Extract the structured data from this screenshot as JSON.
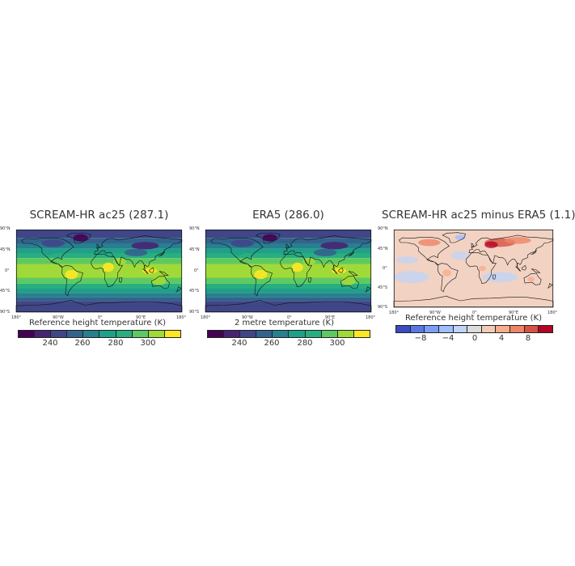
{
  "panels": [
    {
      "title": "SCREAM-HR ac25 (287.1)",
      "colorbar_title": "Reference height temperature (K)",
      "colorbar_labels": [
        "240",
        "260",
        "280",
        "300"
      ],
      "colors": [
        "#440154",
        "#482374",
        "#404688",
        "#33638d",
        "#27808e",
        "#1fa088",
        "#29af7f",
        "#5ec962",
        "#a0da39",
        "#fde725"
      ],
      "kind": "abs"
    },
    {
      "title": "ERA5 (286.0)",
      "colorbar_title": "2 metre temperature (K)",
      "colorbar_labels": [
        "240",
        "260",
        "280",
        "300"
      ],
      "colors": [
        "#440154",
        "#482374",
        "#404688",
        "#33638d",
        "#27808e",
        "#1fa088",
        "#29af7f",
        "#5ec962",
        "#a0da39",
        "#fde725"
      ],
      "kind": "abs"
    },
    {
      "title": "SCREAM-HR ac25 minus ERA5 (1.1)",
      "colorbar_title": "Reference height temperature (K)",
      "colorbar_labels": [
        "−8",
        "−4",
        "0",
        "4",
        "8"
      ],
      "colors": [
        "#3b4cc0",
        "#5a78e4",
        "#7b9ff9",
        "#9ebeff",
        "#c0d4f5",
        "#dddcdc",
        "#f2cbb7",
        "#f7ac8e",
        "#ee8468",
        "#d65244",
        "#b40426"
      ],
      "kind": "diff"
    }
  ],
  "lat_ticks": [
    "90°N",
    "45°N",
    "0°",
    "45°S",
    "90°S"
  ],
  "lon_ticks": [
    "180°",
    "90°W",
    "0°",
    "90°E",
    "180°"
  ]
}
